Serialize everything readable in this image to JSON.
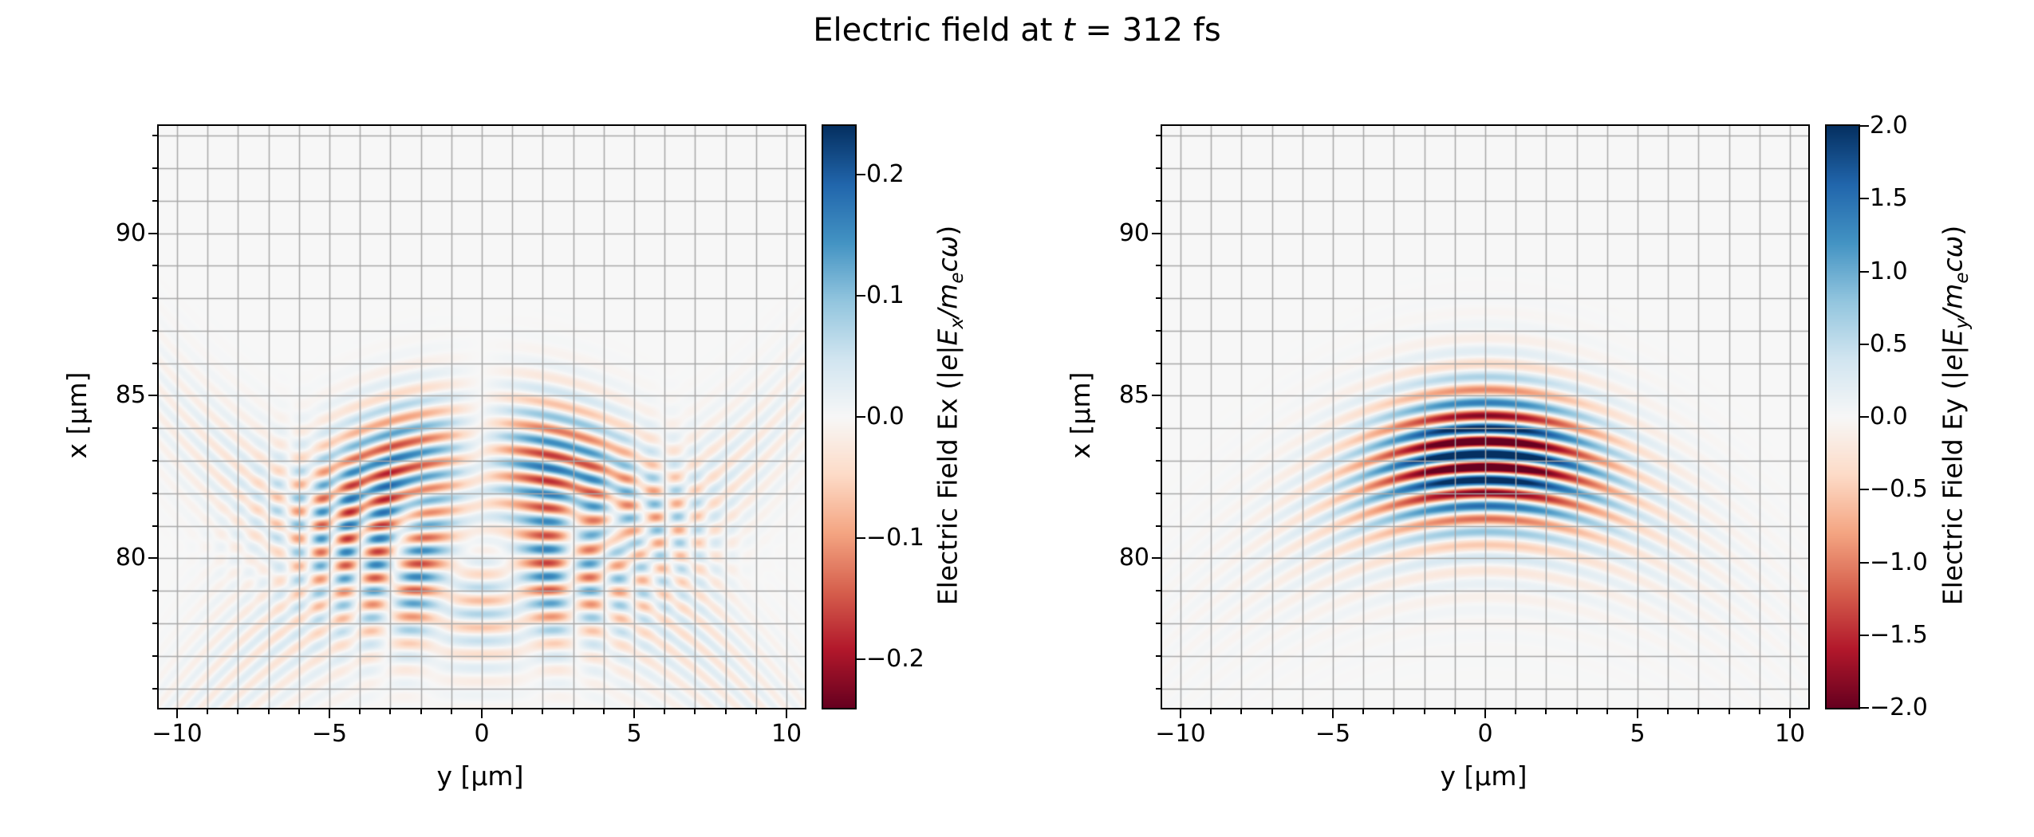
{
  "title": {
    "prefix": "Electric field at ",
    "var": "t",
    "suffix": " = 312 fs"
  },
  "colors": {
    "background": "#ffffff",
    "spine": "#000000",
    "grid": "#a7a7a7",
    "colormap_name": "RdBu",
    "colormap_stops": [
      "#67001f",
      "#b2182b",
      "#d6604d",
      "#f4a582",
      "#fddbc7",
      "#f7f7f7",
      "#d1e5f0",
      "#92c5de",
      "#4393c3",
      "#2166ac",
      "#053061"
    ]
  },
  "chart_data": [
    {
      "type": "heatmap",
      "panel": "Ex",
      "xlabel": "y [μm]",
      "ylabel": "x [μm]",
      "xlim": [
        -10.6,
        10.6
      ],
      "ylim": [
        75.4,
        93.3
      ],
      "xtick_values": [
        -10,
        -5,
        0,
        5,
        10
      ],
      "xtick_labels": [
        "−10",
        "−5",
        "0",
        "5",
        "10"
      ],
      "ytick_values": [
        80,
        85,
        90
      ],
      "ytick_labels": [
        "80",
        "85",
        "90"
      ],
      "grid_step": 1,
      "clim": [
        -0.24,
        0.24
      ],
      "colorbar": {
        "tick_values": [
          0.2,
          0.1,
          0.0,
          -0.1,
          -0.2
        ],
        "tick_labels": [
          "0.2",
          "0.1",
          "0.0",
          "−0.1",
          "−0.2"
        ],
        "label_name": "Electric Field Ex (",
        "label_math_1": "|e|E",
        "label_sub_1": "x",
        "label_math_2": "/m",
        "label_sub_2": "e",
        "label_math_3": "cω",
        "label_close": ")"
      },
      "field_components": [
        {
          "amplitude": 0.4,
          "wavelength": 0.8,
          "phase_center": 83.2,
          "curvature": 0.042,
          "envelope_center_x": 83.1,
          "sigma_x": 2.0,
          "sigma_y": 3.8,
          "antisymmetric": true,
          "phase_offset": 1.5708
        },
        {
          "amplitude": 0.1,
          "wavelength": 0.85,
          "phase_center": 79.2,
          "curvature": -0.05,
          "envelope_center_x": 79.2,
          "sigma_x": 2.2,
          "sigma_y": 8.0,
          "antisymmetric": false,
          "phase_offset": 0
        },
        {
          "amplitude": 0.08,
          "wavelength": 0.8,
          "phase_center": 80.6,
          "curvature": 0.055,
          "envelope_center_x": 80.4,
          "sigma_x": 2.6,
          "sigma_y": 8.0,
          "antisymmetric": false,
          "phase_offset": 0.9
        }
      ]
    },
    {
      "type": "heatmap",
      "panel": "Ey",
      "xlabel": "y [μm]",
      "ylabel": "x [μm]",
      "xlim": [
        -10.6,
        10.6
      ],
      "ylim": [
        75.4,
        93.3
      ],
      "xtick_values": [
        -10,
        -5,
        0,
        5,
        10
      ],
      "xtick_labels": [
        "−10",
        "−5",
        "0",
        "5",
        "10"
      ],
      "ytick_values": [
        80,
        85,
        90
      ],
      "ytick_labels": [
        "80",
        "85",
        "90"
      ],
      "grid_step": 1,
      "clim": [
        -2.0,
        2.0
      ],
      "colorbar": {
        "tick_values": [
          2.0,
          1.5,
          1.0,
          0.5,
          0.0,
          -0.5,
          -1.0,
          -1.5,
          -2.0
        ],
        "tick_labels": [
          "2.0",
          "1.5",
          "1.0",
          "0.5",
          "0.0",
          "−0.5",
          "−1.0",
          "−1.5",
          "−2.0"
        ],
        "label_name": "Electric Field Ey (",
        "label_math_1": "|e|E",
        "label_sub_1": "y",
        "label_math_2": "/m",
        "label_sub_2": "e",
        "label_math_3": "cω",
        "label_close": ")"
      },
      "field_components": [
        {
          "amplitude": 2.3,
          "wavelength": 0.8,
          "phase_center": 83.2,
          "curvature": 0.042,
          "envelope_center_x": 83.2,
          "sigma_x": 1.9,
          "sigma_y": 3.4,
          "antisymmetric": false,
          "phase_offset": 0
        },
        {
          "amplitude": 0.45,
          "wavelength": 0.8,
          "phase_center": 83.2,
          "curvature": 0.042,
          "envelope_center_x": 82.6,
          "sigma_x": 3.0,
          "sigma_y": 6.5,
          "antisymmetric": false,
          "phase_offset": 0
        }
      ]
    }
  ]
}
